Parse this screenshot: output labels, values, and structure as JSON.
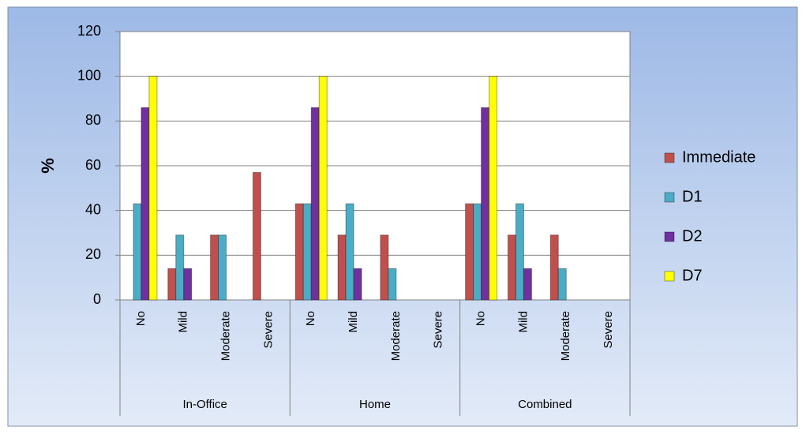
{
  "chart_data": {
    "type": "bar",
    "ylabel": "%",
    "groups": [
      "In-Office",
      "Home",
      "Combined"
    ],
    "categories": [
      "No",
      "Mild",
      "Moderate",
      "Severe",
      "No",
      "Mild",
      "Moderate",
      "Severe",
      "No",
      "Mild",
      "Moderate",
      "Severe"
    ],
    "series": [
      {
        "name": "Immediate",
        "color": "#c0504d",
        "values": [
          0,
          14,
          29,
          57,
          43,
          29,
          29,
          0,
          43,
          29,
          29,
          0
        ]
      },
      {
        "name": "D1",
        "color": "#4bacc6",
        "values": [
          43,
          29,
          29,
          0,
          43,
          43,
          14,
          0,
          43,
          43,
          14,
          0
        ]
      },
      {
        "name": "D2",
        "color": "#7030a0",
        "values": [
          86,
          14,
          0,
          0,
          86,
          14,
          0,
          0,
          86,
          14,
          0,
          0
        ]
      },
      {
        "name": "D7",
        "color": "#ffff00",
        "values": [
          100,
          0,
          0,
          0,
          100,
          0,
          0,
          0,
          100,
          0,
          0,
          0
        ]
      }
    ],
    "ylim": [
      0,
      120
    ],
    "yticks": [
      0,
      20,
      40,
      60,
      80,
      100,
      120
    ],
    "grid": true,
    "legend": "right"
  }
}
